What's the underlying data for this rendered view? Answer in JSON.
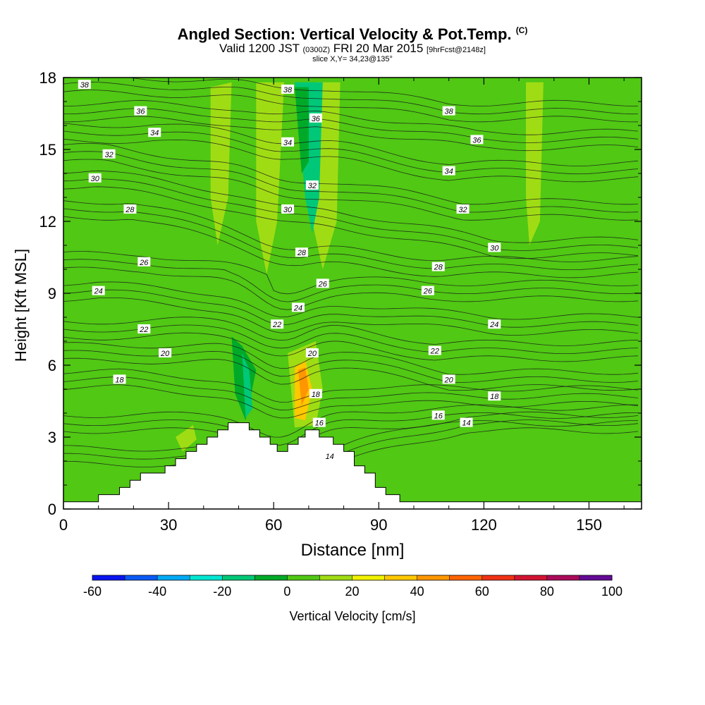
{
  "title": {
    "main": "Angled Section: Vertical Velocity & Pot.Temp.",
    "main_tag": "(C)",
    "valid_prefix": "Valid 1200 JST",
    "valid_utc": "(0300Z)",
    "valid_date": "FRI 20 Mar 2015",
    "fcst": "[9hrFcst@2148z]",
    "slice": "slice X,Y= 34,23@135°"
  },
  "chart_data": {
    "type": "heatmap",
    "xlabel": "Distance [nm]",
    "ylabel": "Height [Kft MSL]",
    "xlim": [
      0,
      165
    ],
    "ylim": [
      0,
      18
    ],
    "xticks": [
      "0",
      "30",
      "60",
      "90",
      "120",
      "150"
    ],
    "yticks": [
      "0",
      "3",
      "6",
      "9",
      "12",
      "15",
      "18"
    ],
    "background_velocity": 5,
    "terrain": [
      [
        0,
        0.3
      ],
      [
        10,
        0.3
      ],
      [
        10,
        0.6
      ],
      [
        16,
        0.6
      ],
      [
        16,
        0.9
      ],
      [
        19,
        0.9
      ],
      [
        19,
        1.2
      ],
      [
        22,
        1.2
      ],
      [
        22,
        1.5
      ],
      [
        29,
        1.5
      ],
      [
        29,
        1.8
      ],
      [
        32,
        1.8
      ],
      [
        32,
        2.1
      ],
      [
        35,
        2.1
      ],
      [
        35,
        2.4
      ],
      [
        38,
        2.4
      ],
      [
        38,
        2.7
      ],
      [
        41,
        2.7
      ],
      [
        41,
        3.0
      ],
      [
        44,
        3.0
      ],
      [
        44,
        3.3
      ],
      [
        47,
        3.3
      ],
      [
        47,
        3.6
      ],
      [
        53,
        3.6
      ],
      [
        53,
        3.3
      ],
      [
        56,
        3.3
      ],
      [
        56,
        3.0
      ],
      [
        59,
        3.0
      ],
      [
        59,
        2.7
      ],
      [
        61,
        2.7
      ],
      [
        61,
        2.4
      ],
      [
        64,
        2.4
      ],
      [
        64,
        2.7
      ],
      [
        67,
        2.7
      ],
      [
        67,
        3.0
      ],
      [
        69,
        3.0
      ],
      [
        69,
        3.3
      ],
      [
        73,
        3.3
      ],
      [
        73,
        3.0
      ],
      [
        77,
        3.0
      ],
      [
        77,
        2.7
      ],
      [
        80,
        2.7
      ],
      [
        80,
        2.4
      ],
      [
        83,
        2.4
      ],
      [
        83,
        1.8
      ],
      [
        86,
        1.8
      ],
      [
        86,
        1.5
      ],
      [
        89,
        1.5
      ],
      [
        89,
        0.9
      ],
      [
        92,
        0.9
      ],
      [
        92,
        0.6
      ],
      [
        96,
        0.6
      ],
      [
        96,
        0.3
      ],
      [
        165,
        0.3
      ]
    ],
    "velocity_regions": [
      {
        "value": 0,
        "points": [
          [
            18,
            17.8
          ],
          [
            30,
            17.8
          ],
          [
            33,
            11.5
          ],
          [
            26,
            12.5
          ],
          [
            18,
            14
          ]
        ]
      },
      {
        "value": 0,
        "points": [
          [
            35,
            17.8
          ],
          [
            46,
            17.8
          ],
          [
            47,
            11.5
          ],
          [
            41,
            10.5
          ],
          [
            37,
            13
          ]
        ]
      },
      {
        "value": 0,
        "points": [
          [
            47,
            17.8
          ],
          [
            63,
            17.8
          ],
          [
            60,
            9
          ],
          [
            58,
            5.5
          ],
          [
            52,
            5
          ]
        ]
      },
      {
        "value": 0,
        "points": [
          [
            84,
            17.8
          ],
          [
            100,
            17.8
          ],
          [
            97,
            12
          ],
          [
            90,
            9.2
          ],
          [
            85,
            11
          ]
        ]
      },
      {
        "value": 0,
        "points": [
          [
            104,
            17.8
          ],
          [
            120,
            17.8
          ],
          [
            115,
            12
          ],
          [
            107,
            8
          ],
          [
            103,
            10
          ]
        ]
      },
      {
        "value": 0,
        "points": [
          [
            127,
            17.8
          ],
          [
            142,
            17.8
          ],
          [
            136,
            11
          ],
          [
            129,
            8
          ],
          [
            125,
            11
          ]
        ]
      },
      {
        "value": 0,
        "points": [
          [
            146,
            17.8
          ],
          [
            165,
            17.8
          ],
          [
            165,
            11
          ],
          [
            158,
            9
          ],
          [
            151,
            12
          ]
        ]
      },
      {
        "value": 0,
        "points": [
          [
            0,
            14
          ],
          [
            6,
            13
          ],
          [
            9,
            10.5
          ],
          [
            5,
            9.3
          ],
          [
            0,
            9
          ]
        ]
      },
      {
        "value": 0,
        "points": [
          [
            18,
            3.5
          ],
          [
            30,
            5.3
          ],
          [
            40,
            5.8
          ],
          [
            55,
            5.5
          ],
          [
            58,
            3.3
          ],
          [
            44,
            3.3
          ],
          [
            36,
            2.5
          ],
          [
            26,
            2.6
          ]
        ]
      },
      {
        "value": 0,
        "points": [
          [
            95,
            1.2
          ],
          [
            105,
            2.2
          ],
          [
            120,
            3.4
          ],
          [
            136,
            4.5
          ],
          [
            150,
            4.7
          ],
          [
            165,
            4
          ],
          [
            165,
            1.2
          ],
          [
            130,
            1.5
          ],
          [
            110,
            0.9
          ]
        ]
      },
      {
        "value": 0,
        "points": [
          [
            0,
            1.8
          ],
          [
            10,
            1.8
          ],
          [
            13,
            1
          ],
          [
            10,
            0.4
          ],
          [
            0,
            0.4
          ]
        ]
      },
      {
        "value": 10,
        "points": [
          [
            42,
            17.6
          ],
          [
            48,
            17.8
          ],
          [
            47,
            13
          ],
          [
            44,
            11
          ],
          [
            42,
            13
          ]
        ]
      },
      {
        "value": 10,
        "points": [
          [
            55,
            17.8
          ],
          [
            63,
            17.8
          ],
          [
            61,
            12
          ],
          [
            58,
            9.8
          ],
          [
            55,
            12
          ]
        ]
      },
      {
        "value": 10,
        "points": [
          [
            72,
            17.8
          ],
          [
            79,
            17.8
          ],
          [
            78,
            12
          ],
          [
            74,
            10
          ],
          [
            71,
            12
          ]
        ]
      },
      {
        "value": 10,
        "points": [
          [
            132,
            17.8
          ],
          [
            137,
            17.8
          ],
          [
            136,
            12
          ],
          [
            133,
            11
          ],
          [
            132,
            13
          ]
        ]
      },
      {
        "value": -20,
        "points": [
          [
            66,
            17.8
          ],
          [
            74,
            17.8
          ],
          [
            73,
            13
          ],
          [
            71,
            11.5
          ],
          [
            69,
            13
          ]
        ]
      },
      {
        "value": -10,
        "points": [
          [
            66,
            17.6
          ],
          [
            70,
            17.6
          ],
          [
            70,
            14.5
          ],
          [
            68,
            14
          ]
        ]
      },
      {
        "value": -10,
        "points": [
          [
            48,
            7.2
          ],
          [
            51,
            6.8
          ],
          [
            55,
            5.8
          ],
          [
            52,
            3.7
          ],
          [
            49,
            4.8
          ]
        ]
      },
      {
        "value": -20,
        "points": [
          [
            51,
            6.5
          ],
          [
            53,
            5.8
          ],
          [
            54,
            4.2
          ],
          [
            52,
            3.8
          ]
        ]
      },
      {
        "value": 10,
        "points": [
          [
            64,
            6.5
          ],
          [
            72,
            7
          ],
          [
            74,
            5
          ],
          [
            72,
            3.5
          ],
          [
            66,
            3.4
          ]
        ]
      },
      {
        "value": 30,
        "points": [
          [
            66,
            5.9
          ],
          [
            69,
            6.2
          ],
          [
            71,
            5
          ],
          [
            69,
            3.7
          ],
          [
            66,
            3.8
          ]
        ]
      },
      {
        "value": 40,
        "points": [
          [
            67,
            5.8
          ],
          [
            69,
            5.9
          ],
          [
            70,
            5
          ],
          [
            68,
            4.3
          ]
        ]
      },
      {
        "value": 10,
        "points": [
          [
            32,
            3
          ],
          [
            37,
            3.5
          ],
          [
            38,
            2.9
          ],
          [
            34,
            2.4
          ]
        ]
      }
    ],
    "isotherm_labels": [
      {
        "text": "38",
        "x": 6,
        "y": 17.7
      },
      {
        "text": "38",
        "x": 64,
        "y": 17.5
      },
      {
        "text": "38",
        "x": 110,
        "y": 16.6
      },
      {
        "text": "36",
        "x": 22,
        "y": 16.6
      },
      {
        "text": "36",
        "x": 72,
        "y": 16.3
      },
      {
        "text": "36",
        "x": 118,
        "y": 15.4
      },
      {
        "text": "34",
        "x": 26,
        "y": 15.7
      },
      {
        "text": "34",
        "x": 64,
        "y": 15.3
      },
      {
        "text": "34",
        "x": 110,
        "y": 14.1
      },
      {
        "text": "32",
        "x": 13,
        "y": 14.8
      },
      {
        "text": "32",
        "x": 71,
        "y": 13.5
      },
      {
        "text": "32",
        "x": 114,
        "y": 12.5
      },
      {
        "text": "30",
        "x": 9,
        "y": 13.8
      },
      {
        "text": "30",
        "x": 64,
        "y": 12.5
      },
      {
        "text": "30",
        "x": 123,
        "y": 10.9
      },
      {
        "text": "28",
        "x": 19,
        "y": 12.5
      },
      {
        "text": "28",
        "x": 68,
        "y": 10.7
      },
      {
        "text": "28",
        "x": 107,
        "y": 10.1
      },
      {
        "text": "26",
        "x": 23,
        "y": 10.3
      },
      {
        "text": "26",
        "x": 74,
        "y": 9.4
      },
      {
        "text": "26",
        "x": 104,
        "y": 9.1
      },
      {
        "text": "24",
        "x": 10,
        "y": 9.1
      },
      {
        "text": "24",
        "x": 67,
        "y": 8.4
      },
      {
        "text": "24",
        "x": 123,
        "y": 7.7
      },
      {
        "text": "22",
        "x": 23,
        "y": 7.5
      },
      {
        "text": "22",
        "x": 61,
        "y": 7.7
      },
      {
        "text": "22",
        "x": 106,
        "y": 6.6
      },
      {
        "text": "20",
        "x": 29,
        "y": 6.5
      },
      {
        "text": "20",
        "x": 71,
        "y": 6.5
      },
      {
        "text": "20",
        "x": 110,
        "y": 5.4
      },
      {
        "text": "18",
        "x": 16,
        "y": 5.4
      },
      {
        "text": "18",
        "x": 72,
        "y": 4.8
      },
      {
        "text": "18",
        "x": 123,
        "y": 4.7
      },
      {
        "text": "16",
        "x": 73,
        "y": 3.6
      },
      {
        "text": "16",
        "x": 107,
        "y": 3.9
      },
      {
        "text": "14",
        "x": 76,
        "y": 2.2
      },
      {
        "text": "14",
        "x": 115,
        "y": 3.6
      }
    ],
    "colorbar": {
      "title": "Vertical Velocity [cm/s]",
      "min": -60,
      "max": 100,
      "tick_labels": [
        "-60",
        "-40",
        "-20",
        "0",
        "20",
        "40",
        "60",
        "80",
        "100"
      ],
      "colors": [
        "#0a14f0",
        "#0a5af5",
        "#00aaf5",
        "#00e6d2",
        "#00c878",
        "#00aa28",
        "#50c814",
        "#a0dc14",
        "#f0f000",
        "#ffc800",
        "#ff9600",
        "#ff6400",
        "#f03214",
        "#d21432",
        "#aa0a5a",
        "#640a96"
      ]
    }
  }
}
